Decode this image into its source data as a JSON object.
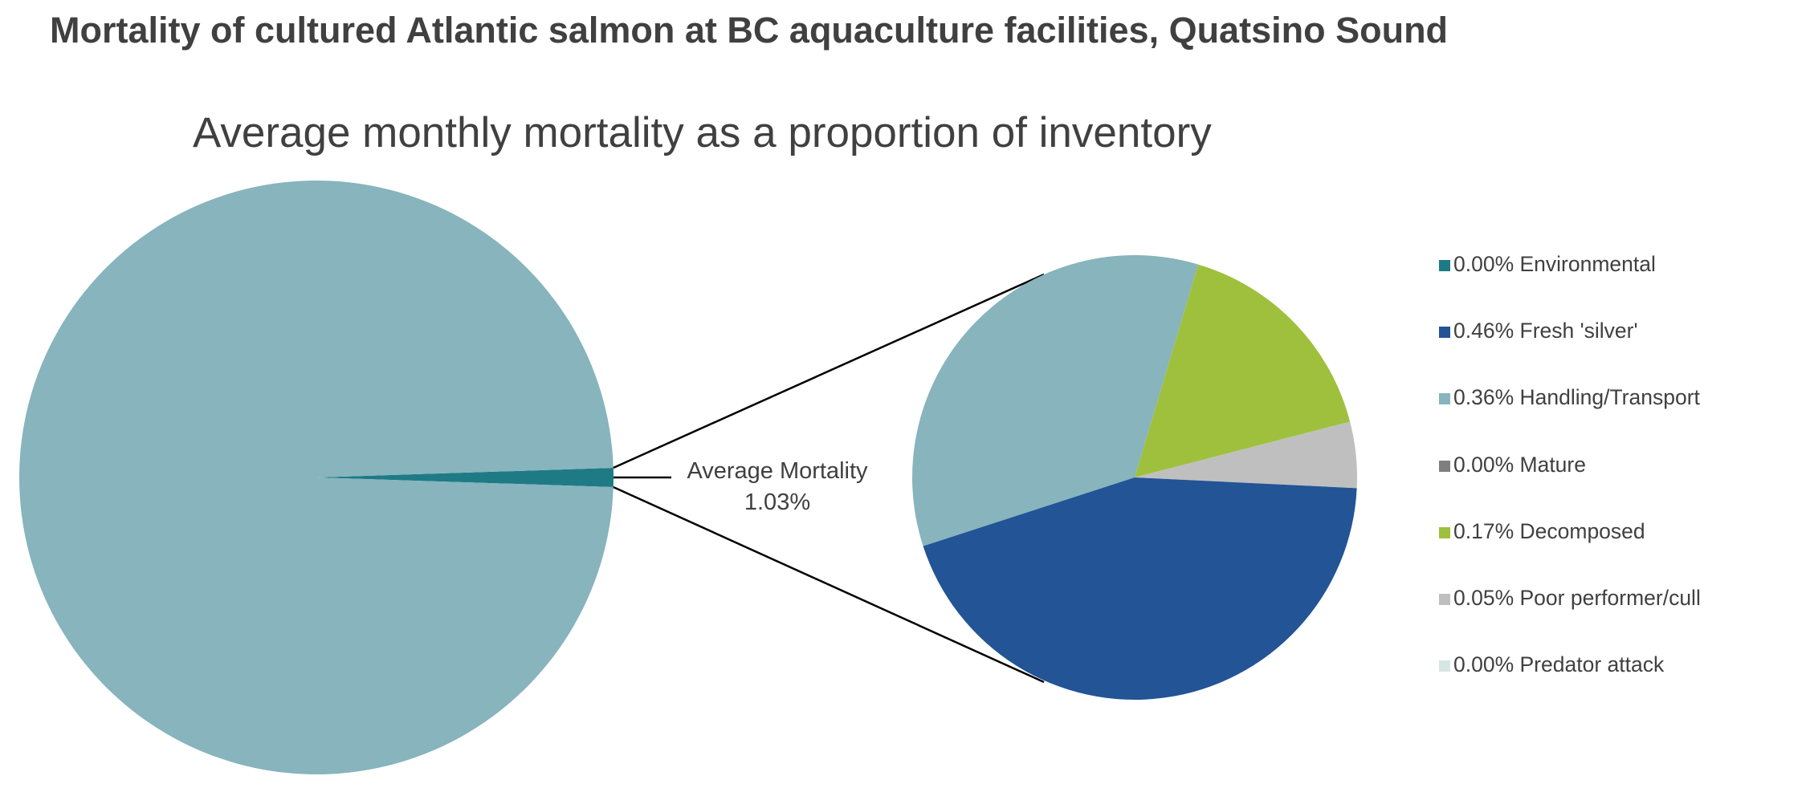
{
  "title": "Mortality of cultured Atlantic salmon at BC aquaculture facilities, Quatsino Sound",
  "chart_data": {
    "type": "pie",
    "subtitle": "Average monthly mortality as a proportion of inventory",
    "main_pie": {
      "slices": [
        {
          "label": "Average Mortality",
          "value": 1.03,
          "color": "#1e7b85"
        },
        {
          "label": "",
          "value": 98.97,
          "color": "#87b4bd"
        }
      ],
      "callout": {
        "label": "Average Mortality",
        "value_text": "1.03%"
      }
    },
    "detail_pie": {
      "unit": "%",
      "slices": [
        {
          "label": "Environmental",
          "value": 0.0,
          "color": "#1e7b85"
        },
        {
          "label": "Fresh 'silver'",
          "value": 0.46,
          "color": "#225496"
        },
        {
          "label": "Handling/Transport",
          "value": 0.36,
          "color": "#87b4bd"
        },
        {
          "label": "Mature",
          "value": 0.0,
          "color": "#7f7f7f"
        },
        {
          "label": "Decomposed",
          "value": 0.17,
          "color": "#9fc03c"
        },
        {
          "label": "Poor performer/cull",
          "value": 0.05,
          "color": "#bfbfbf"
        },
        {
          "label": "Predator attack",
          "value": 0.0,
          "color": "#d6e6e4"
        }
      ]
    },
    "legend": {
      "position": "right",
      "entries": [
        "0.00% Environmental",
        "0.46% Fresh 'silver'",
        "0.36% Handling/Transport",
        "0.00% Mature",
        "0.17% Decomposed",
        "0.05% Poor performer/cull",
        "0.00% Predator attack"
      ]
    }
  }
}
